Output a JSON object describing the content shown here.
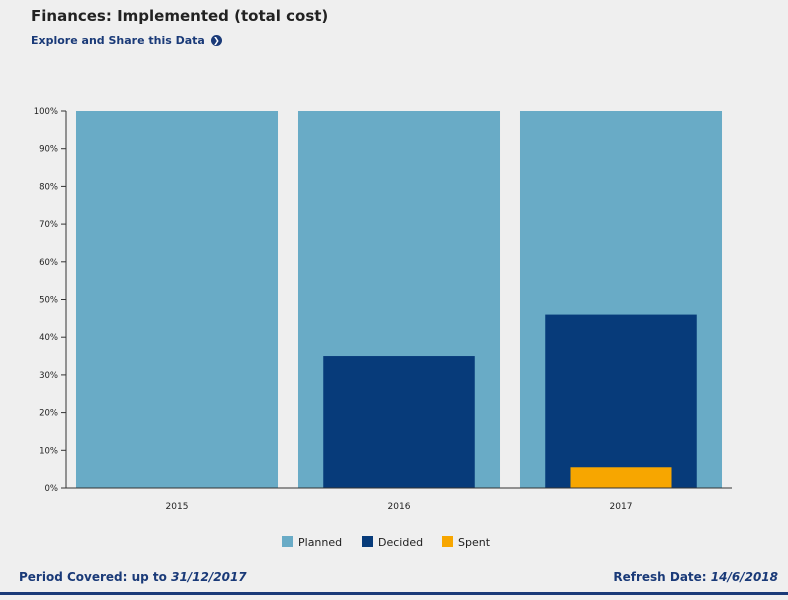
{
  "header": {
    "title": "Finances: Implemented (total cost)",
    "explore_label": "Explore and Share this Data",
    "explore_icon": "arrow-right-circle-icon"
  },
  "chart_data": {
    "type": "bar",
    "title": "",
    "xlabel": "",
    "ylabel": "",
    "categories": [
      "2015",
      "2016",
      "2017"
    ],
    "ylim": [
      0,
      100
    ],
    "yticks": [
      "0%",
      "10%",
      "20%",
      "30%",
      "40%",
      "50%",
      "60%",
      "70%",
      "80%",
      "90%",
      "100%"
    ],
    "grid": false,
    "legend_position": "bottom-center",
    "layout": "overlapping",
    "series": [
      {
        "name": "Planned",
        "color": "#69abc6",
        "values": [
          100,
          100,
          100
        ]
      },
      {
        "name": "Decided",
        "color": "#073b7a",
        "values": [
          0,
          35,
          46
        ]
      },
      {
        "name": "Spent",
        "color": "#f7a600",
        "values": [
          0,
          0,
          5.5
        ]
      }
    ]
  },
  "footer": {
    "period_label": "Period Covered: up to ",
    "period_value": "31/12/2017",
    "refresh_label": "Refresh Date: ",
    "refresh_value": "14/6/2018"
  }
}
